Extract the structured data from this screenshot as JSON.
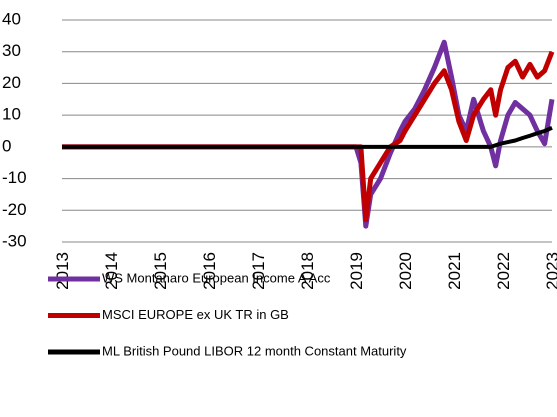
{
  "chart_data": {
    "type": "line",
    "x": [
      2013,
      2014,
      2015,
      2016,
      2017,
      2018,
      2019,
      2019.1,
      2019.2,
      2019.3,
      2019.5,
      2019.7,
      2019.9,
      2020,
      2020.2,
      2020.4,
      2020.6,
      2020.8,
      2020.95,
      2021.1,
      2021.25,
      2021.4,
      2021.6,
      2021.75,
      2021.85,
      2021.95,
      2022.1,
      2022.25,
      2022.4,
      2022.55,
      2022.7,
      2022.85,
      2023
    ],
    "series": [
      {
        "name": "WS Montanaro European Income A Acc",
        "color": "#7030a0",
        "values": [
          0,
          0,
          0,
          0,
          0,
          0,
          0,
          -5,
          -25,
          -15,
          -10,
          -2,
          5,
          8,
          12,
          18,
          25,
          33,
          22,
          10,
          5,
          15,
          5,
          0,
          -6,
          2,
          10,
          14,
          12,
          10,
          5,
          1,
          15
        ]
      },
      {
        "name": "MSCI EUROPE ex UK TR in GB",
        "color": "#c00000",
        "values": [
          0,
          0,
          0,
          0,
          0,
          0,
          0,
          0,
          -23,
          -10,
          -5,
          0,
          2,
          5,
          10,
          15,
          20,
          24,
          18,
          8,
          2,
          10,
          15,
          18,
          10,
          18,
          25,
          27,
          22,
          26,
          22,
          24,
          30
        ]
      },
      {
        "name": "ML British Pound LIBOR 12 month Constant Maturity",
        "color": "#000000",
        "values": [
          0,
          0,
          0,
          0,
          0,
          0,
          0,
          0,
          0,
          0,
          0,
          0,
          0,
          0,
          0,
          0,
          0,
          0,
          0,
          0,
          0,
          0,
          0,
          0,
          0.5,
          1,
          1.5,
          2,
          2.8,
          3.5,
          4.3,
          5,
          6
        ]
      }
    ],
    "xlim": [
      2013,
      2023
    ],
    "xticks": [
      2013,
      2014,
      2015,
      2016,
      2017,
      2018,
      2019,
      2020,
      2021,
      2022,
      2023
    ],
    "ylim": [
      -30,
      40
    ],
    "yticks": [
      -30,
      -20,
      -10,
      0,
      10,
      20,
      30,
      40
    ],
    "grid": true
  }
}
